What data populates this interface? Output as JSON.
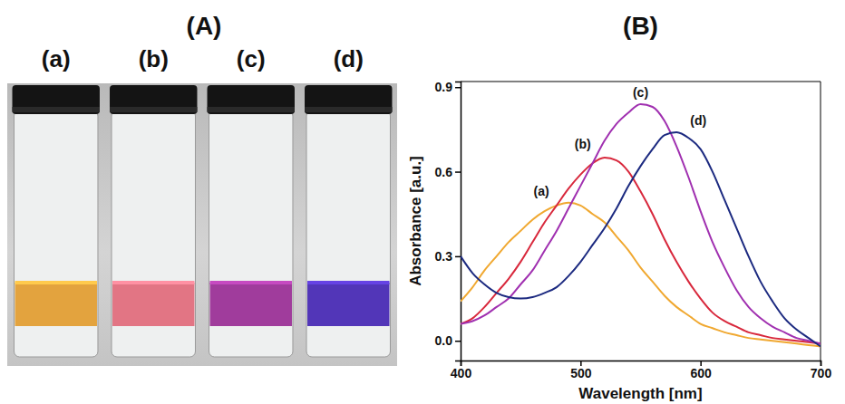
{
  "photo": {
    "title": "(A)",
    "vials": [
      {
        "label": "(a)",
        "color": "#e3a33e"
      },
      {
        "label": "(b)",
        "color": "#e27584"
      },
      {
        "label": "(c)",
        "color": "#a03c9c"
      },
      {
        "label": "(d)",
        "color": "#5236b8"
      }
    ]
  },
  "chart_data": {
    "type": "line",
    "title": "(B)",
    "x_label": "Wavelength [nm]",
    "y_label": "Absorbance [a.u.]",
    "x": [
      400,
      410,
      420,
      430,
      440,
      450,
      460,
      470,
      480,
      490,
      500,
      510,
      520,
      530,
      540,
      550,
      560,
      570,
      580,
      590,
      600,
      610,
      620,
      630,
      640,
      650,
      660,
      670,
      680,
      690,
      700
    ],
    "series": [
      {
        "name": "(a)",
        "color": "#f0a830",
        "values": [
          0.14,
          0.19,
          0.25,
          0.3,
          0.35,
          0.39,
          0.43,
          0.46,
          0.48,
          0.49,
          0.48,
          0.45,
          0.42,
          0.37,
          0.32,
          0.26,
          0.21,
          0.16,
          0.12,
          0.09,
          0.06,
          0.045,
          0.03,
          0.02,
          0.01,
          0.005,
          0.0,
          -0.005,
          -0.01,
          -0.015,
          -0.02
        ]
      },
      {
        "name": "(b)",
        "color": "#d8283c",
        "values": [
          0.06,
          0.08,
          0.12,
          0.17,
          0.22,
          0.28,
          0.35,
          0.42,
          0.48,
          0.54,
          0.59,
          0.63,
          0.65,
          0.64,
          0.6,
          0.53,
          0.45,
          0.36,
          0.28,
          0.21,
          0.15,
          0.1,
          0.07,
          0.05,
          0.03,
          0.02,
          0.01,
          0.005,
          0.0,
          -0.005,
          -0.01
        ]
      },
      {
        "name": "(c)",
        "color": "#a030b0",
        "values": [
          0.06,
          0.07,
          0.09,
          0.12,
          0.15,
          0.2,
          0.25,
          0.32,
          0.39,
          0.47,
          0.55,
          0.63,
          0.71,
          0.77,
          0.81,
          0.84,
          0.83,
          0.78,
          0.69,
          0.58,
          0.46,
          0.35,
          0.26,
          0.18,
          0.12,
          0.08,
          0.05,
          0.03,
          0.01,
          0.0,
          -0.01
        ]
      },
      {
        "name": "(d)",
        "color": "#1c2a80",
        "values": [
          0.3,
          0.24,
          0.2,
          0.17,
          0.155,
          0.15,
          0.155,
          0.17,
          0.19,
          0.23,
          0.28,
          0.34,
          0.4,
          0.47,
          0.55,
          0.62,
          0.68,
          0.73,
          0.74,
          0.72,
          0.68,
          0.6,
          0.5,
          0.4,
          0.3,
          0.21,
          0.14,
          0.08,
          0.04,
          0.01,
          -0.02
        ]
      }
    ],
    "xlim": [
      400,
      700
    ],
    "xticks": [
      400,
      500,
      600,
      700
    ],
    "ylim": [
      -0.07,
      0.92
    ],
    "yticks": [
      {
        "value": 0,
        "label": "0.0"
      },
      0.3,
      0.6,
      0.9
    ]
  }
}
